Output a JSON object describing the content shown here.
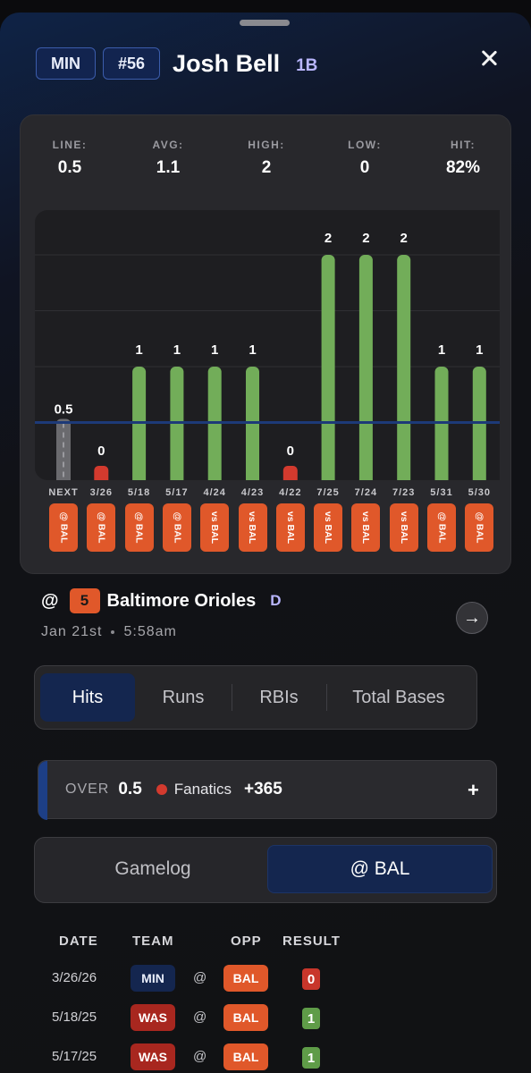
{
  "header": {
    "team": "MIN",
    "number": "#56",
    "name": "Josh Bell",
    "position": "1B"
  },
  "stats": [
    {
      "label": "LINE:",
      "value": "0.5"
    },
    {
      "label": "AVG:",
      "value": "1.1"
    },
    {
      "label": "HIGH:",
      "value": "2"
    },
    {
      "label": "LOW:",
      "value": "0"
    },
    {
      "label": "HIT:",
      "value": "82%"
    }
  ],
  "chart_data": {
    "type": "bar",
    "line": 0.5,
    "line_label": "0.5",
    "ylim": [
      0,
      2.4
    ],
    "categories": [
      "NEXT",
      "3/26",
      "5/18",
      "5/17",
      "4/24",
      "4/23",
      "4/22",
      "7/25",
      "7/24",
      "7/23",
      "5/31",
      "5/30"
    ],
    "opponents": [
      "@ BAL",
      "@ BAL",
      "@ BAL",
      "@ BAL",
      "vs BAL",
      "vs BAL",
      "vs BAL",
      "vs BAL",
      "vs BAL",
      "vs BAL",
      "@ BAL",
      "@ BAL"
    ],
    "values": [
      null,
      0,
      1,
      1,
      1,
      1,
      0,
      2,
      2,
      2,
      1,
      1
    ],
    "colors": {
      "over": "#72ad59",
      "under": "#d33a2e",
      "next": "#6a6a6e",
      "line": "#1d3a78"
    }
  },
  "next_game": {
    "prefix": "@",
    "rank": "5",
    "opponent": "Baltimore Orioles",
    "grade": "D",
    "date": "Jan 21st",
    "time": "5:58am"
  },
  "stat_tabs": [
    "Hits",
    "Runs",
    "RBIs",
    "Total Bases"
  ],
  "odds": {
    "side": "OVER",
    "line": "0.5",
    "book": "Fanatics",
    "price": "+365",
    "expand": "+"
  },
  "segments": [
    "Gamelog",
    "@ BAL"
  ],
  "table": {
    "headers": [
      "DATE",
      "TEAM",
      "OPP",
      "RESULT"
    ],
    "rows": [
      {
        "date": "3/26/26",
        "team": "MIN",
        "at": "@",
        "opp": "BAL",
        "result": "0"
      },
      {
        "date": "5/18/25",
        "team": "WAS",
        "at": "@",
        "opp": "BAL",
        "result": "1"
      },
      {
        "date": "5/17/25",
        "team": "WAS",
        "at": "@",
        "opp": "BAL",
        "result": "1"
      }
    ]
  }
}
